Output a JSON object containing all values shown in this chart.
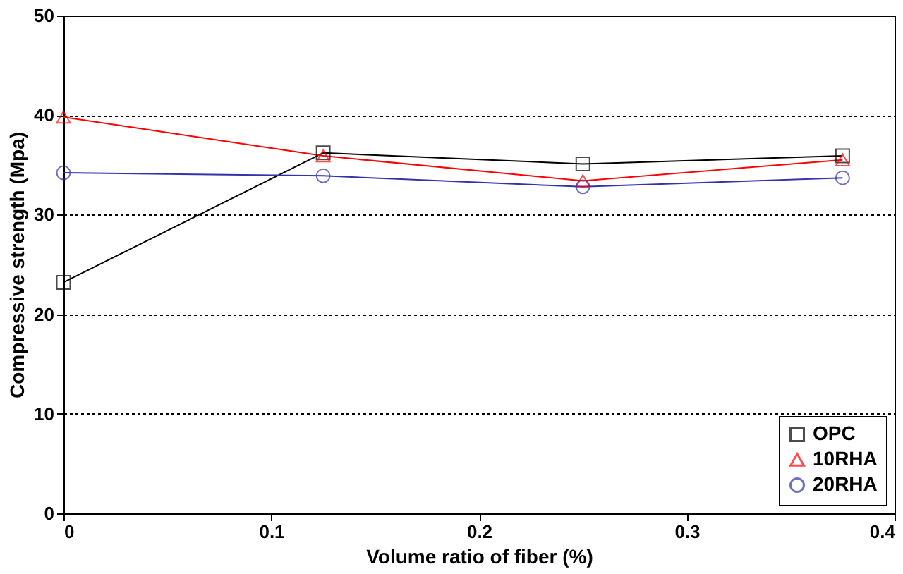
{
  "chart_data": {
    "type": "line",
    "xlabel": "Volume ratio of fiber (%)",
    "ylabel": "Compressive strength (Mpa)",
    "x": [
      0,
      0.125,
      0.25,
      0.375
    ],
    "series": [
      {
        "name": "OPC",
        "color": "#000000",
        "marker": "square",
        "values": [
          23.2,
          36.2,
          35.1,
          35.9
        ]
      },
      {
        "name": "10RHA",
        "color": "#ff0000",
        "marker": "triangle",
        "values": [
          39.8,
          35.9,
          33.4,
          35.5
        ]
      },
      {
        "name": "20RHA",
        "color": "#3333aa",
        "marker": "circle",
        "values": [
          34.2,
          33.9,
          32.8,
          33.7
        ]
      }
    ],
    "xlim": [
      0,
      0.4
    ],
    "xticks": [
      0,
      0.1,
      0.2,
      0.3,
      0.4
    ],
    "ylim": [
      0,
      50
    ],
    "yticks": [
      0,
      10,
      20,
      30,
      40,
      50
    ],
    "grid": "y",
    "line_style": "solid",
    "legend": "bottom right"
  }
}
